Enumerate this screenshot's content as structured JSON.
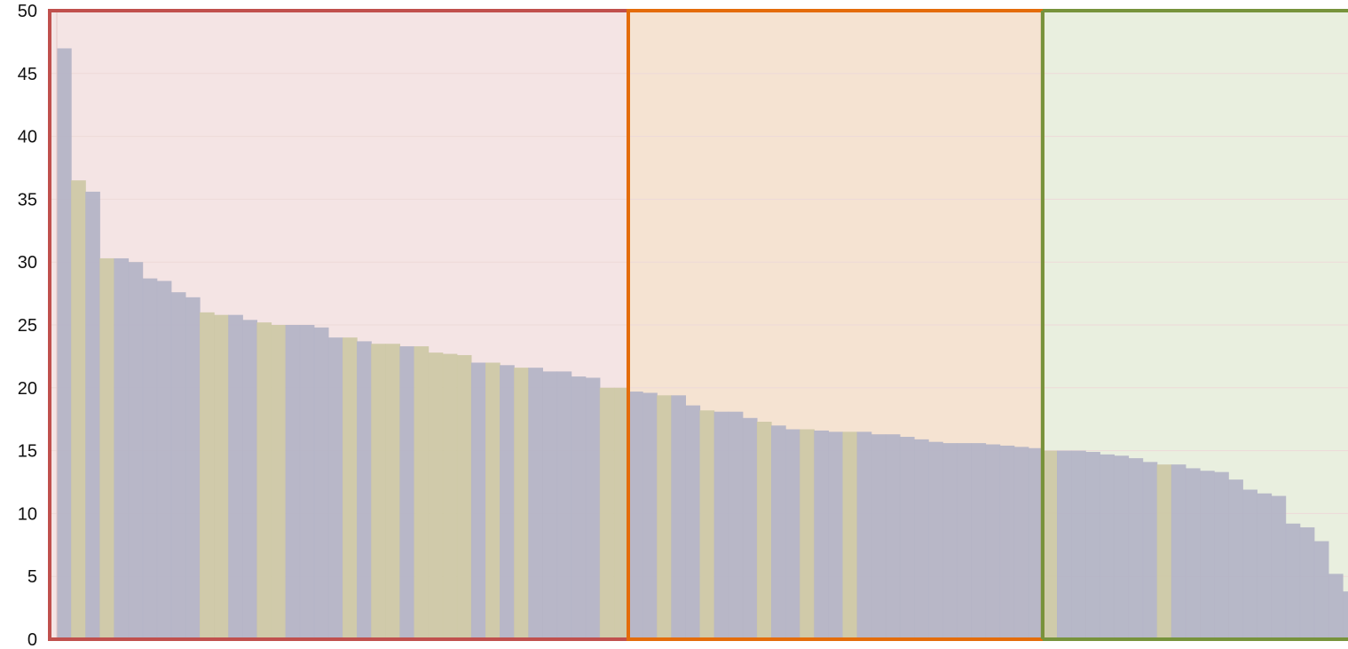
{
  "chart_data": {
    "type": "bar",
    "title": "",
    "xlabel": "",
    "ylabel": "",
    "ylim": [
      0,
      50
    ],
    "yticks": [
      0,
      5,
      10,
      15,
      20,
      25,
      30,
      35,
      40,
      45,
      50
    ],
    "grid": true,
    "values": [
      47,
      36.5,
      35.6,
      30.3,
      30.3,
      30.0,
      28.7,
      28.5,
      27.6,
      27.2,
      26.0,
      25.8,
      25.8,
      25.4,
      25.2,
      25.0,
      25.0,
      25.0,
      24.8,
      24.0,
      24.0,
      23.7,
      23.5,
      23.5,
      23.3,
      23.3,
      22.8,
      22.7,
      22.6,
      22.0,
      22.0,
      21.8,
      21.6,
      21.6,
      21.3,
      21.3,
      20.9,
      20.8,
      20.0,
      20.0,
      19.7,
      19.6,
      19.4,
      19.4,
      18.6,
      18.2,
      18.1,
      18.1,
      17.6,
      17.3,
      17.0,
      16.7,
      16.7,
      16.6,
      16.5,
      16.5,
      16.5,
      16.3,
      16.3,
      16.1,
      15.9,
      15.7,
      15.6,
      15.6,
      15.6,
      15.5,
      15.4,
      15.3,
      15.2,
      15.0,
      15.0,
      15.0,
      14.9,
      14.7,
      14.6,
      14.4,
      14.1,
      13.9,
      13.9,
      13.6,
      13.4,
      13.3,
      12.7,
      11.9,
      11.6,
      11.4,
      9.2,
      8.9,
      7.8,
      5.2,
      3.8
    ],
    "bar_kind": [
      "a",
      "b",
      "a",
      "b",
      "a",
      "a",
      "a",
      "a",
      "a",
      "a",
      "b",
      "b",
      "a",
      "a",
      "b",
      "b",
      "a",
      "a",
      "a",
      "a",
      "b",
      "a",
      "b",
      "b",
      "a",
      "b",
      "b",
      "b",
      "b",
      "a",
      "b",
      "a",
      "b",
      "a",
      "a",
      "a",
      "a",
      "a",
      "b",
      "b",
      "a",
      "a",
      "b",
      "a",
      "a",
      "b",
      "a",
      "a",
      "a",
      "b",
      "a",
      "a",
      "b",
      "a",
      "a",
      "b",
      "a",
      "a",
      "a",
      "a",
      "a",
      "a",
      "a",
      "a",
      "a",
      "a",
      "a",
      "a",
      "a",
      "b",
      "a",
      "a",
      "a",
      "a",
      "a",
      "a",
      "a",
      "b",
      "a",
      "a",
      "a",
      "a",
      "a",
      "a",
      "a",
      "a",
      "a",
      "a",
      "a",
      "a",
      "a"
    ],
    "colors": {
      "a": "#b4b4c6",
      "b": "#cdc8a6",
      "bar_alpha": 0.95
    },
    "regions": [
      {
        "bars": [
          0,
          39
        ],
        "border": "#c0504d",
        "fill": "#f4e4e4"
      },
      {
        "bars": [
          40,
          68
        ],
        "border": "#e46c0a",
        "fill": "#f5e3d2"
      },
      {
        "bars": [
          69,
          90
        ],
        "border": "#77933c",
        "fill": "#e9efdf"
      }
    ],
    "gridline_color": "#eddad8"
  }
}
